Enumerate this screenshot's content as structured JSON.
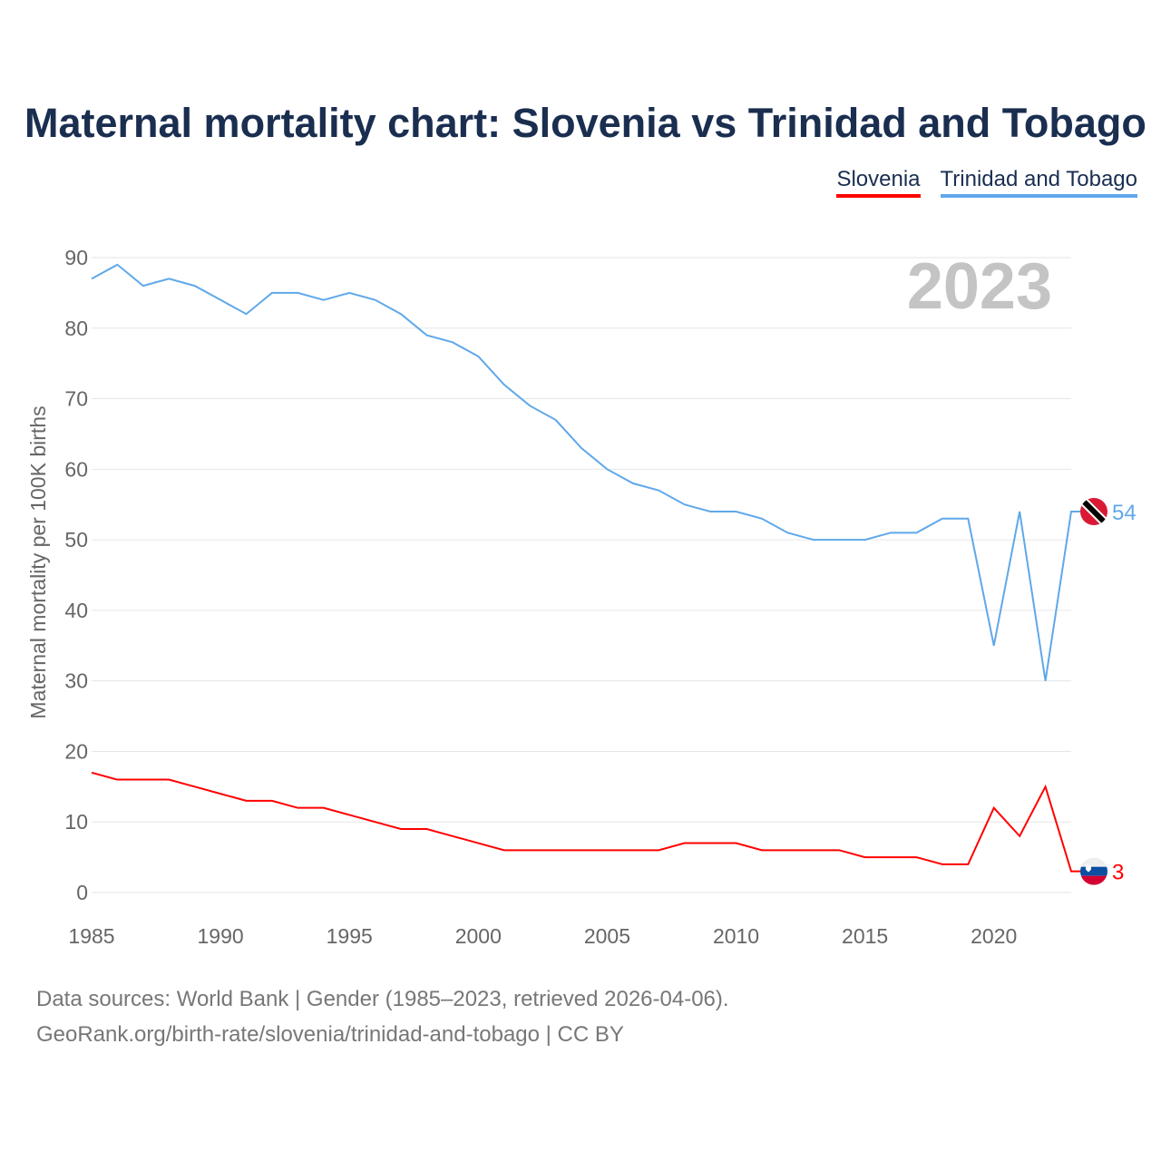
{
  "title": "Maternal mortality chart: Slovenia vs Trinidad and Tobago",
  "year_label": "2023",
  "footer": [
    "Data sources: World Bank | Gender (1985–2023, retrieved 2026-04-06).",
    "GeoRank.org/birth-rate/slovenia/trinidad-and-tobago | CC BY"
  ],
  "chart_data": {
    "type": "line",
    "title": "Maternal mortality chart: Slovenia vs Trinidad and Tobago",
    "xlabel": "",
    "ylabel": "Maternal mortality per 100K births",
    "xlim": [
      1985,
      2023
    ],
    "ylim": [
      0,
      90
    ],
    "xticks": [
      1985,
      1990,
      1995,
      2000,
      2005,
      2010,
      2015,
      2020
    ],
    "yticks": [
      0,
      10,
      20,
      30,
      40,
      50,
      60,
      70,
      80,
      90
    ],
    "grid": true,
    "legend_placement": "top-right",
    "x": [
      1985,
      1986,
      1987,
      1988,
      1989,
      1990,
      1991,
      1992,
      1993,
      1994,
      1995,
      1996,
      1997,
      1998,
      1999,
      2000,
      2001,
      2002,
      2003,
      2004,
      2005,
      2006,
      2007,
      2008,
      2009,
      2010,
      2011,
      2012,
      2013,
      2014,
      2015,
      2016,
      2017,
      2018,
      2019,
      2020,
      2021,
      2022,
      2023
    ],
    "series": [
      {
        "name": "Slovenia",
        "color": "#ff0000",
        "end_label": "3",
        "values": [
          17,
          16,
          16,
          16,
          15,
          14,
          13,
          13,
          12,
          12,
          11,
          10,
          9,
          9,
          8,
          7,
          6,
          6,
          6,
          6,
          6,
          6,
          6,
          7,
          7,
          7,
          6,
          6,
          6,
          6,
          5,
          5,
          5,
          4,
          4,
          12,
          8,
          15,
          3
        ]
      },
      {
        "name": "Trinidad and Tobago",
        "color": "#5fa8ea",
        "end_label": "54",
        "values": [
          87,
          89,
          86,
          87,
          86,
          84,
          82,
          85,
          85,
          84,
          85,
          84,
          82,
          79,
          78,
          76,
          72,
          69,
          67,
          63,
          60,
          58,
          57,
          55,
          54,
          54,
          53,
          51,
          50,
          50,
          50,
          51,
          51,
          53,
          53,
          35,
          54,
          30,
          54
        ]
      }
    ]
  }
}
